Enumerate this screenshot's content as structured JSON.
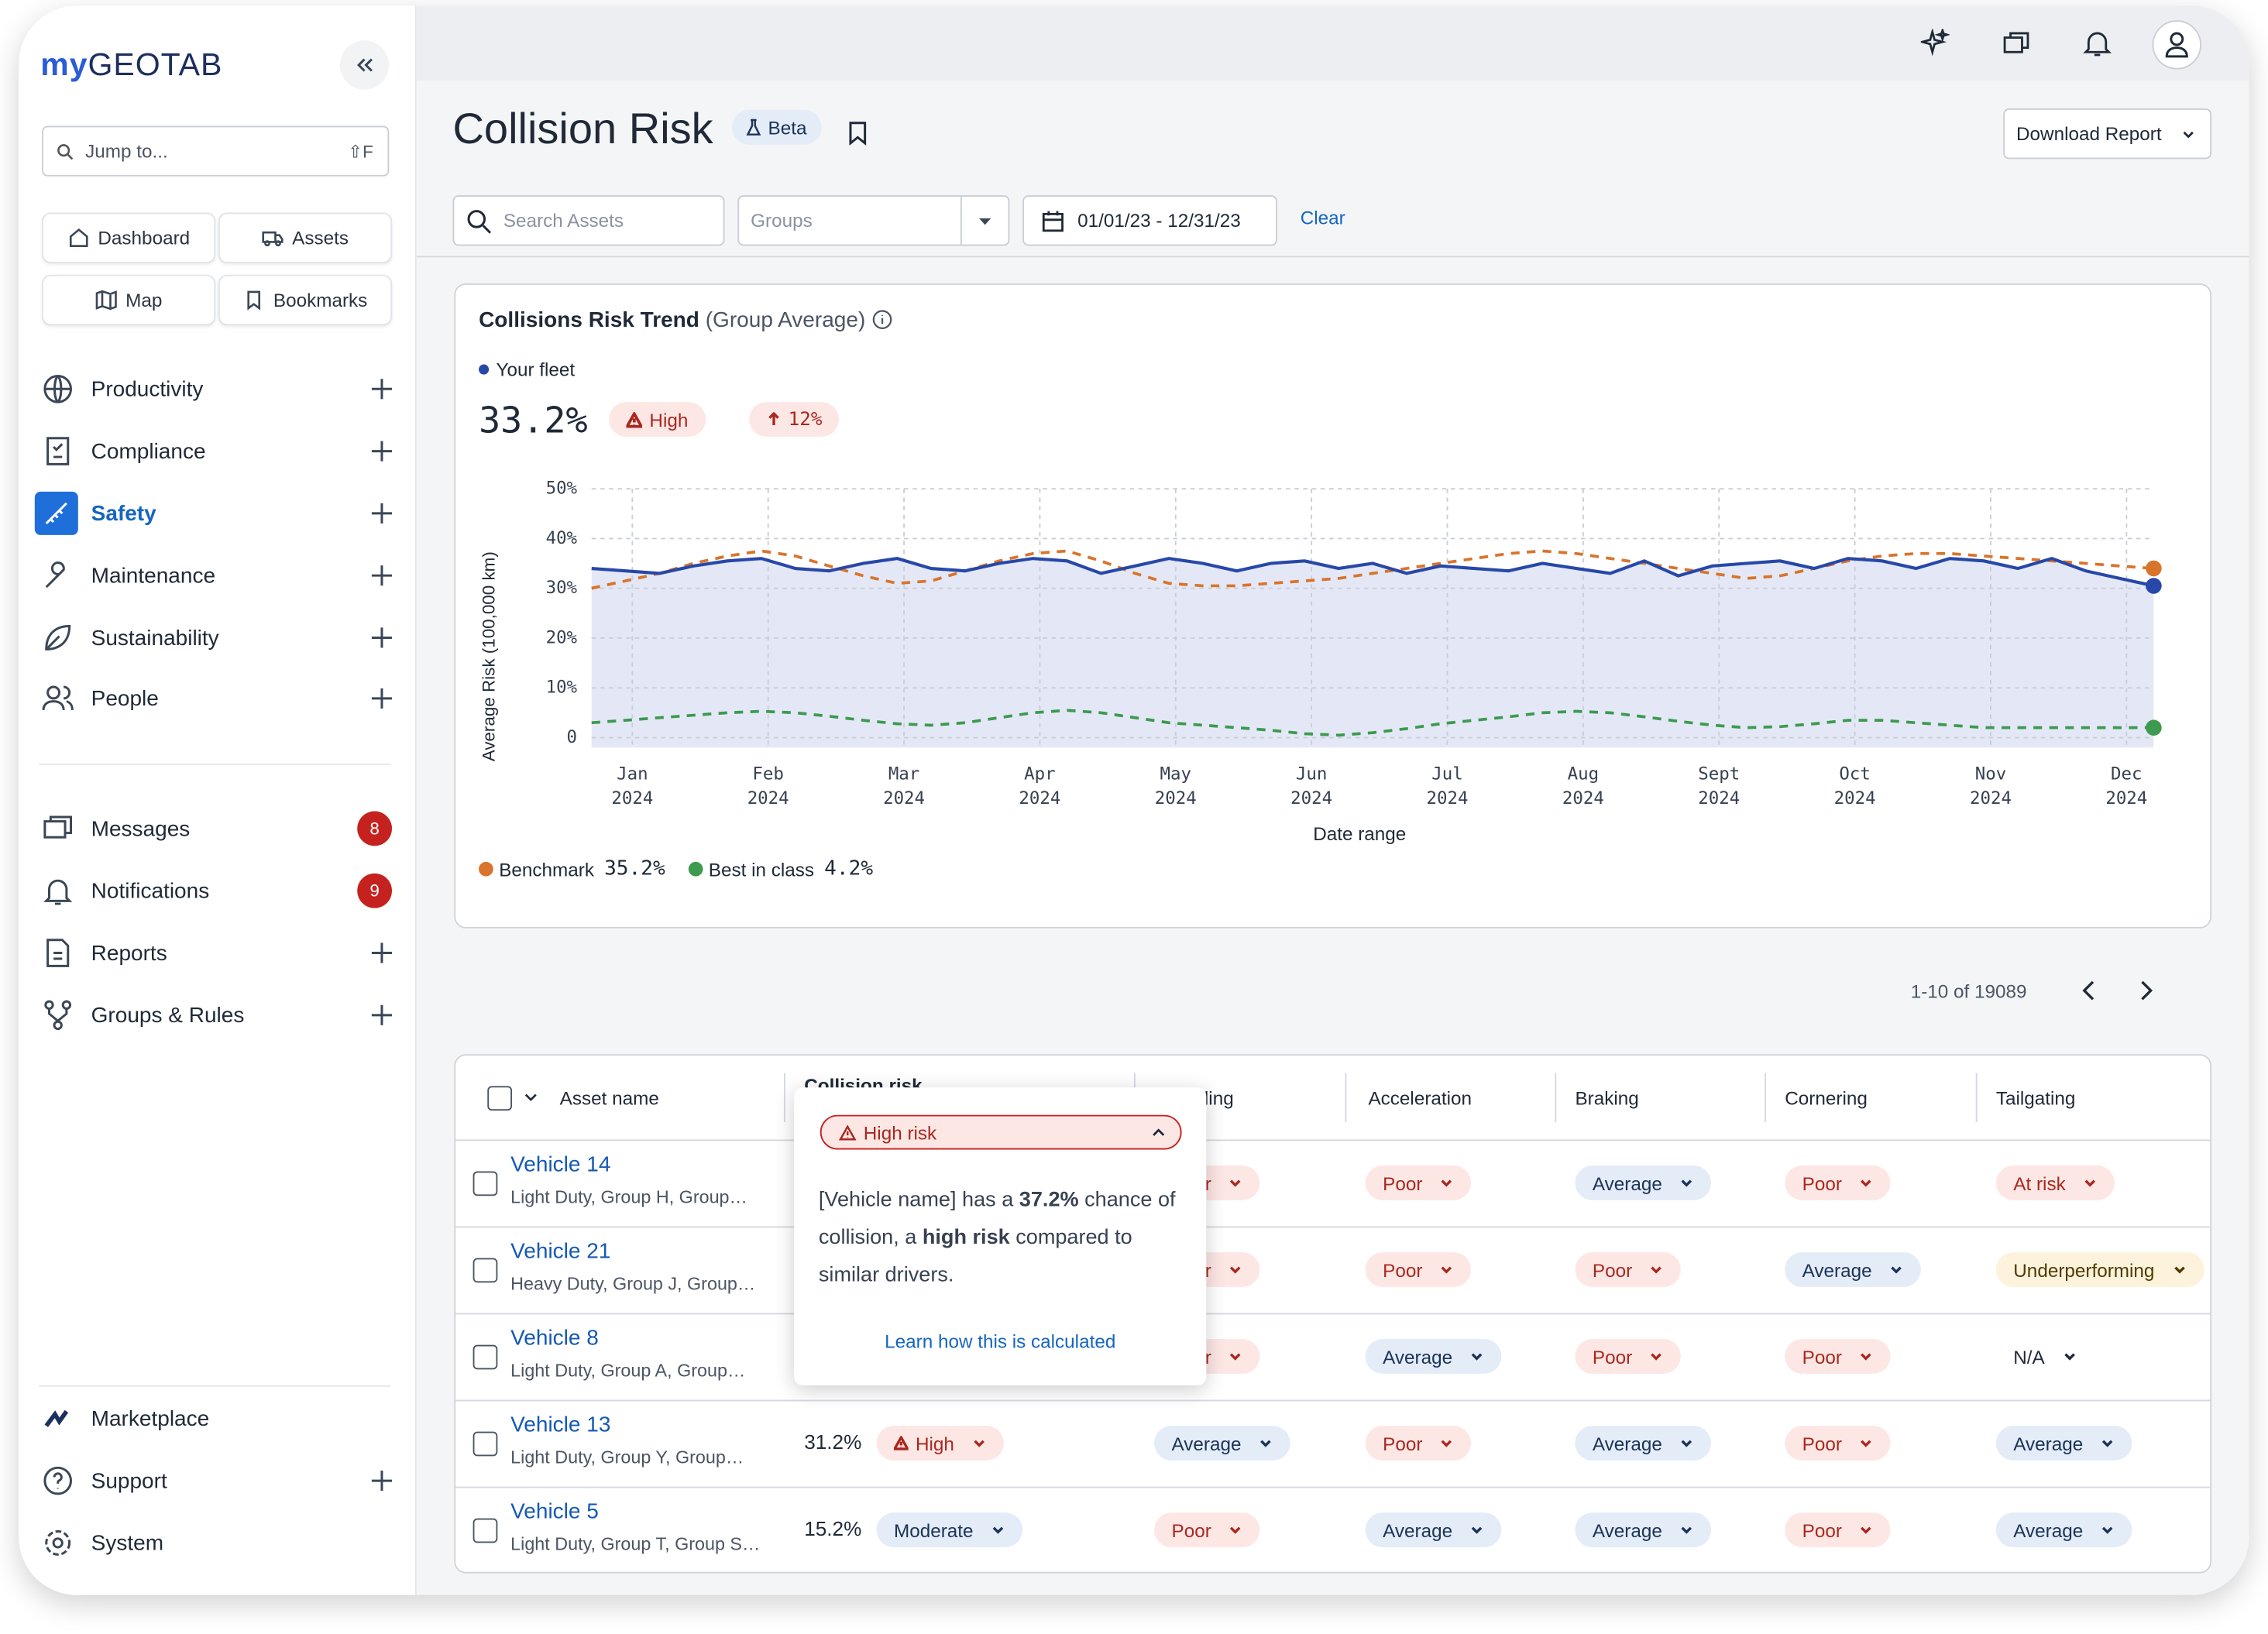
{
  "sidebar": {
    "logo_prefix": "my",
    "logo_main": "GEOTAB",
    "search_placeholder": "Jump to...",
    "search_shortcut": "⇧F",
    "quick_links": [
      "Dashboard",
      "Assets",
      "Map",
      "Bookmarks"
    ],
    "nav": [
      "Productivity",
      "Compliance",
      "Safety",
      "Maintenance",
      "Sustainability",
      "People"
    ],
    "messages": [
      {
        "label": "Messages",
        "badge": "8"
      },
      {
        "label": "Notifications",
        "badge": "9"
      }
    ],
    "secondary_nav": [
      "Reports",
      "Groups & Rules"
    ],
    "footer_nav": [
      "Marketplace",
      "Support",
      "System"
    ]
  },
  "header": {
    "title": "Collision Risk",
    "badge": "Beta",
    "action": "Download Report"
  },
  "filters": {
    "search": "Search Assets",
    "groups": "Groups",
    "date_range": "01/01/23 - 12/31/23",
    "clear": "Clear"
  },
  "chart_data": {
    "type": "line",
    "title": "Collisions Risk Trend",
    "subtitle": "(Group Average)",
    "x_label": "Date range",
    "y_label": "Average Risk (100,000 km)",
    "grid": true,
    "xlim": [
      -0.3,
      11.2
    ],
    "xticks": [
      {
        "value": 0,
        "label": "Jan 2024"
      },
      {
        "value": 1,
        "label": "Feb 2024"
      },
      {
        "value": 2,
        "label": "Mar 2024"
      },
      {
        "value": 3,
        "label": "Apr 2024"
      },
      {
        "value": 4,
        "label": "May 2024"
      },
      {
        "value": 5,
        "label": "Jun 2024"
      },
      {
        "value": 6,
        "label": "Jul 2024"
      },
      {
        "value": 7,
        "label": "Aug 2024"
      },
      {
        "value": 8,
        "label": "Sept 2024"
      },
      {
        "value": 9,
        "label": "Oct 2024"
      },
      {
        "value": 10,
        "label": "Nov 2024"
      },
      {
        "value": 11,
        "label": "Dec 2024"
      }
    ],
    "ylim": [
      -2,
      50
    ],
    "yticks": [
      0,
      {
        "value": 10,
        "label": "10%"
      },
      {
        "value": 20,
        "label": "20%"
      },
      {
        "value": 30,
        "label": "30%"
      },
      {
        "value": 40,
        "label": "40%"
      },
      {
        "value": 50,
        "label": "50%"
      }
    ],
    "x": [
      -0.3,
      -0.05,
      0.2,
      0.45,
      0.7,
      0.95,
      1.2,
      1.45,
      1.7,
      1.95,
      2.2,
      2.45,
      2.7,
      2.95,
      3.2,
      3.45,
      3.7,
      3.95,
      4.2,
      4.45,
      4.7,
      4.95,
      5.2,
      5.45,
      5.7,
      5.95,
      6.2,
      6.45,
      6.7,
      6.95,
      7.2,
      7.45,
      7.7,
      7.95,
      8.2,
      8.45,
      8.7,
      8.95,
      9.2,
      9.45,
      9.7,
      9.95,
      10.2,
      10.45,
      10.7,
      10.95,
      11.2
    ],
    "series": [
      {
        "name": "Your fleet",
        "color": "#2748a8",
        "dashed": false,
        "area": "#e4e8f6",
        "summary": "33.2%",
        "level": "High",
        "change": "12%",
        "values": [
          34,
          33.5,
          33,
          34.5,
          35.5,
          36,
          34,
          33.5,
          35,
          36,
          34,
          33.5,
          35,
          36,
          35.5,
          33,
          34.5,
          36,
          35,
          33.5,
          35,
          35.5,
          34,
          35,
          33,
          34.5,
          34,
          33.5,
          35,
          34,
          33,
          35.5,
          32.5,
          34.5,
          35,
          35.5,
          34,
          36,
          35.5,
          34,
          36,
          35.5,
          34,
          36,
          33.5,
          32,
          30.5
        ]
      },
      {
        "name": "Benchmark",
        "color": "#d9742c",
        "dashed": true,
        "summary": "35.2%",
        "values": [
          30,
          31.5,
          33,
          35,
          36.5,
          37.5,
          36.5,
          34.5,
          32.5,
          31,
          31.5,
          33.5,
          35.5,
          37,
          37.5,
          35.5,
          33,
          31,
          30.5,
          30.5,
          31,
          31.5,
          32,
          33,
          34,
          35,
          36,
          37,
          37.5,
          37,
          36,
          35,
          34,
          33,
          32,
          32.5,
          34,
          35.5,
          36.5,
          37,
          37,
          36.5,
          36,
          35.5,
          35,
          34.5,
          34
        ]
      },
      {
        "name": "Best in class",
        "color": "#3d9a4f",
        "dashed": true,
        "summary": "4.2%",
        "values": [
          3,
          3.5,
          4,
          4.5,
          5,
          5.3,
          5,
          4.3,
          3.5,
          2.8,
          2.5,
          3,
          4,
          5,
          5.5,
          5,
          4,
          3,
          2.5,
          2,
          1.5,
          0.8,
          0.5,
          1,
          1.8,
          2.8,
          3.5,
          4.2,
          5,
          5.3,
          5,
          4.2,
          3.3,
          2.5,
          2,
          2.2,
          2.8,
          3.5,
          3.5,
          3,
          2.5,
          2,
          2,
          2,
          2,
          2,
          2
        ]
      }
    ]
  },
  "pagination": "1-10 of 19089",
  "table": {
    "columns": [
      "Asset name",
      "Collision risk",
      "Speeding",
      "Acceleration",
      "Braking",
      "Cornering",
      "Tailgating"
    ],
    "rows": [
      {
        "name": "Vehicle 14",
        "details": "Light Duty, Group H, Group…",
        "ratings": [
          {
            "label": "Poor",
            "color": "#a8281e",
            "fill": "#fde7e5"
          },
          {
            "label": "Poor",
            "color": "#a8281e",
            "fill": "#fde7e5"
          },
          {
            "label": "Average",
            "color": "#1b3357",
            "fill": "#e4ecf8"
          },
          {
            "label": "Poor",
            "color": "#a8281e",
            "fill": "#fde7e5"
          },
          {
            "label": "At risk",
            "color": "#a8281e",
            "fill": "#fde7e5"
          }
        ]
      },
      {
        "name": "Vehicle 21",
        "details": "Heavy Duty, Group J, Group…",
        "ratings": [
          {
            "label": "Poor",
            "color": "#a8281e",
            "fill": "#fde7e5"
          },
          {
            "label": "Poor",
            "color": "#a8281e",
            "fill": "#fde7e5"
          },
          {
            "label": "Poor",
            "color": "#a8281e",
            "fill": "#fde7e5"
          },
          {
            "label": "Average",
            "color": "#1b3357",
            "fill": "#e4ecf8"
          },
          {
            "label": "Underperforming",
            "color": "#4d3b00",
            "fill": "#fdf3dc"
          }
        ]
      },
      {
        "name": "Vehicle 8",
        "details": "Light Duty, Group A, Group…",
        "ratings": [
          {
            "label": "Poor",
            "color": "#a8281e",
            "fill": "#fde7e5"
          },
          {
            "label": "Average",
            "color": "#1b3357",
            "fill": "#e4ecf8"
          },
          {
            "label": "Poor",
            "color": "#a8281e",
            "fill": "#fde7e5"
          },
          {
            "label": "Poor",
            "color": "#a8281e",
            "fill": "#fde7e5"
          },
          {
            "label": "N/A",
            "color": "#1f2937",
            "fill": "#ffffff"
          }
        ]
      },
      {
        "name": "Vehicle 13",
        "details": "Light Duty, Group Y, Group…",
        "risk": "31.2%",
        "level": {
          "label": "High",
          "color": "#a8281e",
          "fill": "#fde7e5"
        },
        "ratings": [
          {
            "label": "Average",
            "color": "#1b3357",
            "fill": "#e4ecf8"
          },
          {
            "label": "Poor",
            "color": "#a8281e",
            "fill": "#fde7e5"
          },
          {
            "label": "Average",
            "color": "#1b3357",
            "fill": "#e4ecf8"
          },
          {
            "label": "Poor",
            "color": "#a8281e",
            "fill": "#fde7e5"
          },
          {
            "label": "Average",
            "color": "#1b3357",
            "fill": "#e4ecf8"
          }
        ]
      },
      {
        "name": "Vehicle 5",
        "details": "Light Duty, Group T, Group S…",
        "risk": "15.2%",
        "level": {
          "label": "Moderate",
          "color": "#1b3357",
          "fill": "#e4ecf8"
        },
        "ratings": [
          {
            "label": "Poor",
            "color": "#a8281e",
            "fill": "#fde7e5"
          },
          {
            "label": "Average",
            "color": "#1b3357",
            "fill": "#e4ecf8"
          },
          {
            "label": "Average",
            "color": "#1b3357",
            "fill": "#e4ecf8"
          },
          {
            "label": "Poor",
            "color": "#a8281e",
            "fill": "#fde7e5"
          },
          {
            "label": "Average",
            "color": "#1b3357",
            "fill": "#e4ecf8"
          }
        ]
      }
    ]
  },
  "popup": {
    "label": "High risk",
    "text": [
      "[Vehicle name] has a ",
      "37.2%",
      " chance of collision, a ",
      "high risk",
      " compared to similar drivers."
    ],
    "link": "Learn how this is calculated"
  }
}
